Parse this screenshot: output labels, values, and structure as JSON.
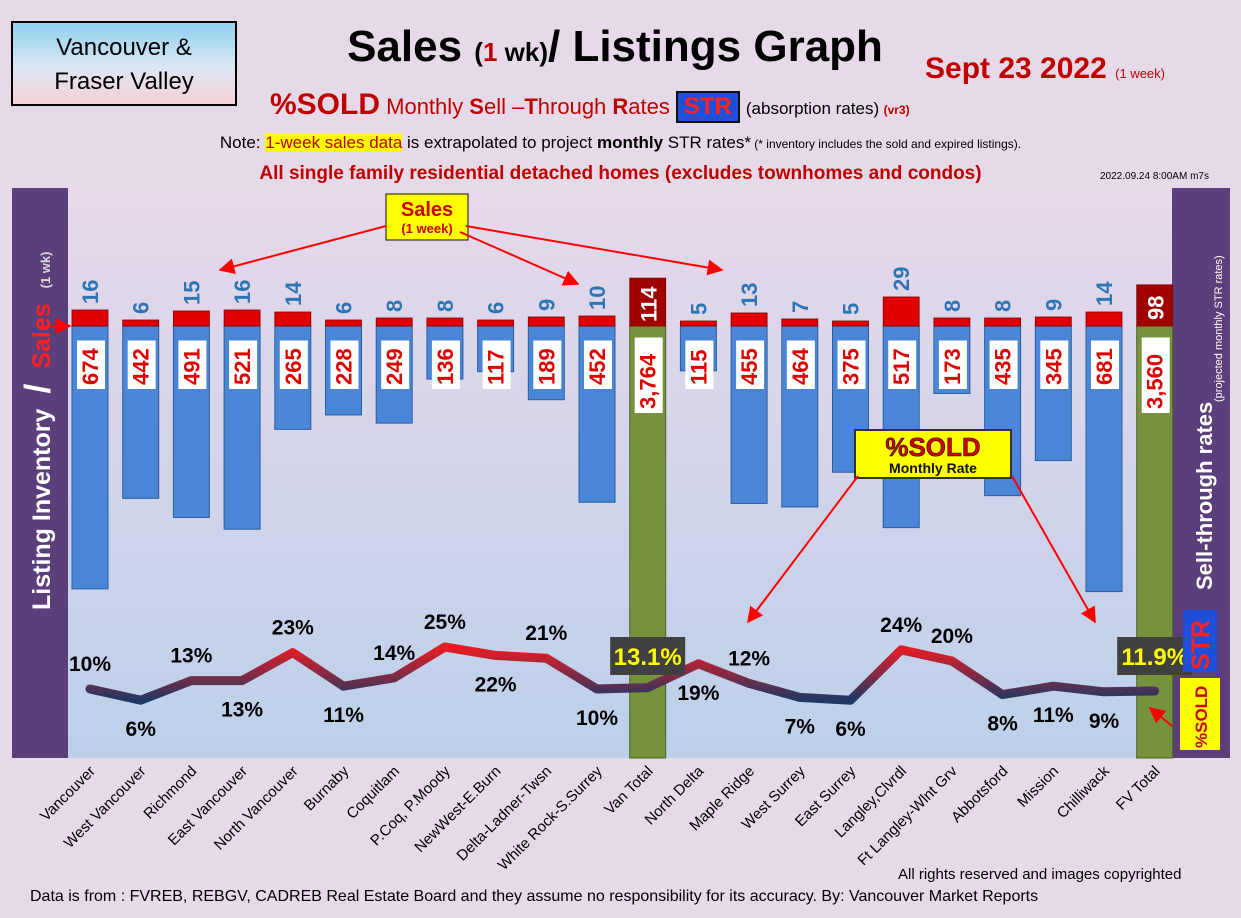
{
  "region": {
    "line1": "Vancouver &",
    "line2": "Fraser Valley"
  },
  "title": {
    "main": "Sales",
    "paren_open": "(",
    "num": "1",
    "wk": " wk)",
    "rest": "/ Listings Graph"
  },
  "date": {
    "text": "Sept 23  2022",
    "period": "(1 week)"
  },
  "subtitle": {
    "sold": "%SOLD",
    "monthly": " Monthly ",
    "s": "S",
    "ell": "ell –",
    "t": "T",
    "hrough": "hrough ",
    "r": "R",
    "ates": "ates",
    "str": "STR",
    "absorption": "(absorption rates)",
    "vr": "(vr3)"
  },
  "note": {
    "lead": "Note: ",
    "highlight": "1-week sales data",
    "mid": " is extrapolated to project ",
    "bold": "monthly",
    "tail": " STR rates*",
    "small": " (* inventory includes the sold and expired listings)."
  },
  "scope": "All single family residential detached homes (excludes townhomes and condos)",
  "stamp": "2022.09.24 8:00AM m7s",
  "left_axis": {
    "a": "Listing Inventory",
    "slash": "/",
    "b": "Sales",
    "c": "(1 wk)"
  },
  "right_axis": {
    "a": "Sell-through rates",
    "b": "(projected monthly STR rates)",
    "str": "STR"
  },
  "callouts": {
    "sales_title": "Sales",
    "sales_sub": "(1 week)",
    "sold_title": "%SOLD",
    "sold_sub": "Monthly Rate",
    "sold_side": "%SOLD"
  },
  "footer": {
    "rights": "All rights reserved and  images copyrighted",
    "source": "Data is from : FVREB, REBGV, CADREB Real Estate Board and they assume no responsibility for its accuracy. By: Vancouver Market Reports"
  },
  "colors": {
    "sales_bar": "#e00000",
    "total_sales_bar": "#a00000",
    "inventory_bar": "#4a86d8",
    "total_inventory_bar": "#76923c",
    "sales_label": "#2e75b6",
    "inventory_label": "#e00000",
    "line_high": "#e81c24",
    "line_low": "#1f3864"
  },
  "chart_data": {
    "type": "bar",
    "categories": [
      "Vancouver",
      "West Vancouver",
      "Richmond",
      "East Vancouver",
      "North Vancouver",
      "Burnaby",
      "Coquitlam",
      "P.Coq, P.Moody",
      "NewWest-E.Burn",
      "Delta-Ladner-Twsn",
      "White Rock-S.Surrey",
      "Van Total",
      "North Delta",
      "Maple Ridge",
      "West Surrey",
      "East Surrey",
      "Langley,Clvrdl",
      "Ft Langley-Wlnt Grv",
      "Abbotsford",
      "Mission",
      "Chilliwack",
      "FV Total"
    ],
    "series": [
      {
        "name": "Sales",
        "values": [
          16,
          6,
          15,
          16,
          14,
          6,
          8,
          8,
          6,
          9,
          10,
          114,
          5,
          13,
          7,
          5,
          29,
          8,
          8,
          9,
          14,
          98
        ]
      },
      {
        "name": "Listing Inventory",
        "values": [
          674,
          442,
          491,
          521,
          265,
          228,
          249,
          136,
          117,
          189,
          452,
          3764,
          115,
          455,
          464,
          375,
          517,
          173,
          435,
          345,
          681,
          3560
        ]
      },
      {
        "name": "%SOLD",
        "values": [
          "10%",
          "6%",
          "13%",
          "13%",
          "23%",
          "11%",
          "14%",
          "25%",
          "22%",
          "21%",
          "10%",
          "13.1%",
          "19%",
          "12%",
          "7%",
          "6%",
          "24%",
          "20%",
          "8%",
          "11%",
          "9%",
          "11.9%"
        ]
      }
    ],
    "sold_rate": [
      10,
      6,
      13,
      13,
      23,
      11,
      14,
      25,
      22,
      21,
      10,
      13.1,
      19,
      12,
      7,
      6,
      24,
      20,
      8,
      11,
      9,
      11.9
    ],
    "sold_label_pos": [
      "above",
      "below",
      "above",
      "below",
      "above",
      "below",
      "above",
      "above",
      "below",
      "above",
      "below",
      "above",
      "below",
      "above",
      "below",
      "below",
      "above",
      "above",
      "below",
      "below",
      "below",
      "above"
    ],
    "totals": [
      "Van Total",
      "FV Total"
    ],
    "title": "Sales (1 wk)/ Listings Graph",
    "ylabel": "Listing Inventory / Sales (1 wk)",
    "y2label": "STR Sell-through rates (projected monthly STR rates)"
  }
}
